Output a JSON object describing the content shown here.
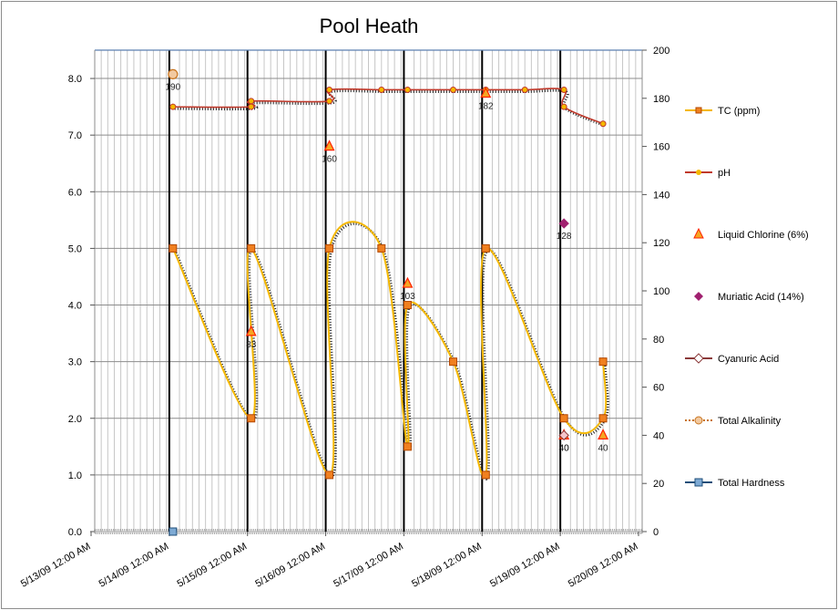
{
  "chart_data": {
    "type": "line",
    "title": "Pool Heath",
    "x_start": "2009-05-13T00:00",
    "x_end": "2009-05-20T00:00",
    "x_tick_labels": [
      "5/13/09 12:00 AM",
      "5/14/09 12:00 AM",
      "5/15/09 12:00 AM",
      "5/16/09 12:00 AM",
      "5/17/09 12:00 AM",
      "5/18/09 12:00 AM",
      "5/19/09 12:00 AM",
      "5/20/09 12:00 AM"
    ],
    "y_left": {
      "min": 0,
      "max": 8.5,
      "step": 1,
      "tick_labels": [
        "0.0",
        "1.0",
        "2.0",
        "3.0",
        "4.0",
        "5.0",
        "6.0",
        "7.0",
        "8.0"
      ]
    },
    "y_right": {
      "min": 0,
      "max": 200,
      "step": 20,
      "tick_labels": [
        "0",
        "20",
        "40",
        "60",
        "80",
        "100",
        "120",
        "140",
        "160",
        "180",
        "200"
      ]
    },
    "gridlines": true,
    "legend_position": "right",
    "series": [
      {
        "name": "TC (ppm)",
        "axis": "left",
        "color": "#f5b800",
        "marker": "square",
        "marker_color": "#f08020",
        "points": [
          [
            "2009-05-14T00:00",
            5.0
          ],
          [
            "2009-05-15T00:00",
            2.0
          ],
          [
            "2009-05-15T00:00",
            5.0
          ],
          [
            "2009-05-16T00:00",
            1.0
          ],
          [
            "2009-05-16T00:00",
            5.0
          ],
          [
            "2009-05-16T16:00",
            5.0
          ],
          [
            "2009-05-17T00:00",
            1.5
          ],
          [
            "2009-05-17T00:00",
            4.0
          ],
          [
            "2009-05-17T14:00",
            3.0
          ],
          [
            "2009-05-18T00:00",
            1.0
          ],
          [
            "2009-05-18T00:00",
            5.0
          ],
          [
            "2009-05-19T00:00",
            2.0
          ],
          [
            "2009-05-19T12:00",
            2.0
          ],
          [
            "2009-05-19T12:00",
            3.0
          ]
        ]
      },
      {
        "name": "pH",
        "axis": "left",
        "color": "#c0392b",
        "marker": "dot",
        "marker_color": "#f5b800",
        "points": [
          [
            "2009-05-14T00:00",
            7.5
          ],
          [
            "2009-05-15T00:00",
            7.5
          ],
          [
            "2009-05-15T00:00",
            7.6
          ],
          [
            "2009-05-16T00:00",
            7.6
          ],
          [
            "2009-05-16T00:00",
            7.8
          ],
          [
            "2009-05-16T16:00",
            7.8
          ],
          [
            "2009-05-17T00:00",
            7.8
          ],
          [
            "2009-05-17T14:00",
            7.8
          ],
          [
            "2009-05-18T00:00",
            7.8
          ],
          [
            "2009-05-18T12:00",
            7.8
          ],
          [
            "2009-05-19T00:00",
            7.8
          ],
          [
            "2009-05-19T00:00",
            7.5
          ],
          [
            "2009-05-19T12:00",
            7.2
          ]
        ]
      },
      {
        "name": "Liquid Chlorine (6%)",
        "axis": "right",
        "color": "#ff2200",
        "marker": "triangle",
        "marker_fill": "#f5a623",
        "points": [
          [
            "2009-05-15T00:00",
            83,
            "83"
          ],
          [
            "2009-05-16T00:00",
            160,
            "160"
          ],
          [
            "2009-05-17T00:00",
            103,
            "103"
          ],
          [
            "2009-05-18T00:00",
            182,
            "182"
          ],
          [
            "2009-05-19T00:00",
            40,
            "40"
          ],
          [
            "2009-05-19T12:00",
            40,
            "40"
          ]
        ]
      },
      {
        "name": "Muriatic Acid (14%)",
        "axis": "right",
        "color": "#a0206f",
        "marker": "diamond",
        "points": [
          [
            "2009-05-19T00:00",
            128,
            "128"
          ]
        ]
      },
      {
        "name": "Cyanuric Acid",
        "axis": "right",
        "color": "#8b3a3a",
        "marker": "diamond-hollow",
        "points": [
          [
            "2009-05-19T00:00",
            40,
            "40"
          ]
        ]
      },
      {
        "name": "Total Alkalinity",
        "axis": "right",
        "color": "#c8741e",
        "marker": "circle",
        "points": [
          [
            "2009-05-14T00:00",
            190,
            "190"
          ]
        ]
      },
      {
        "name": "Total Hardness",
        "axis": "right",
        "color": "#1f4e79",
        "marker": "square-blue",
        "points": [
          [
            "2009-05-14T00:00",
            0
          ]
        ]
      }
    ]
  }
}
